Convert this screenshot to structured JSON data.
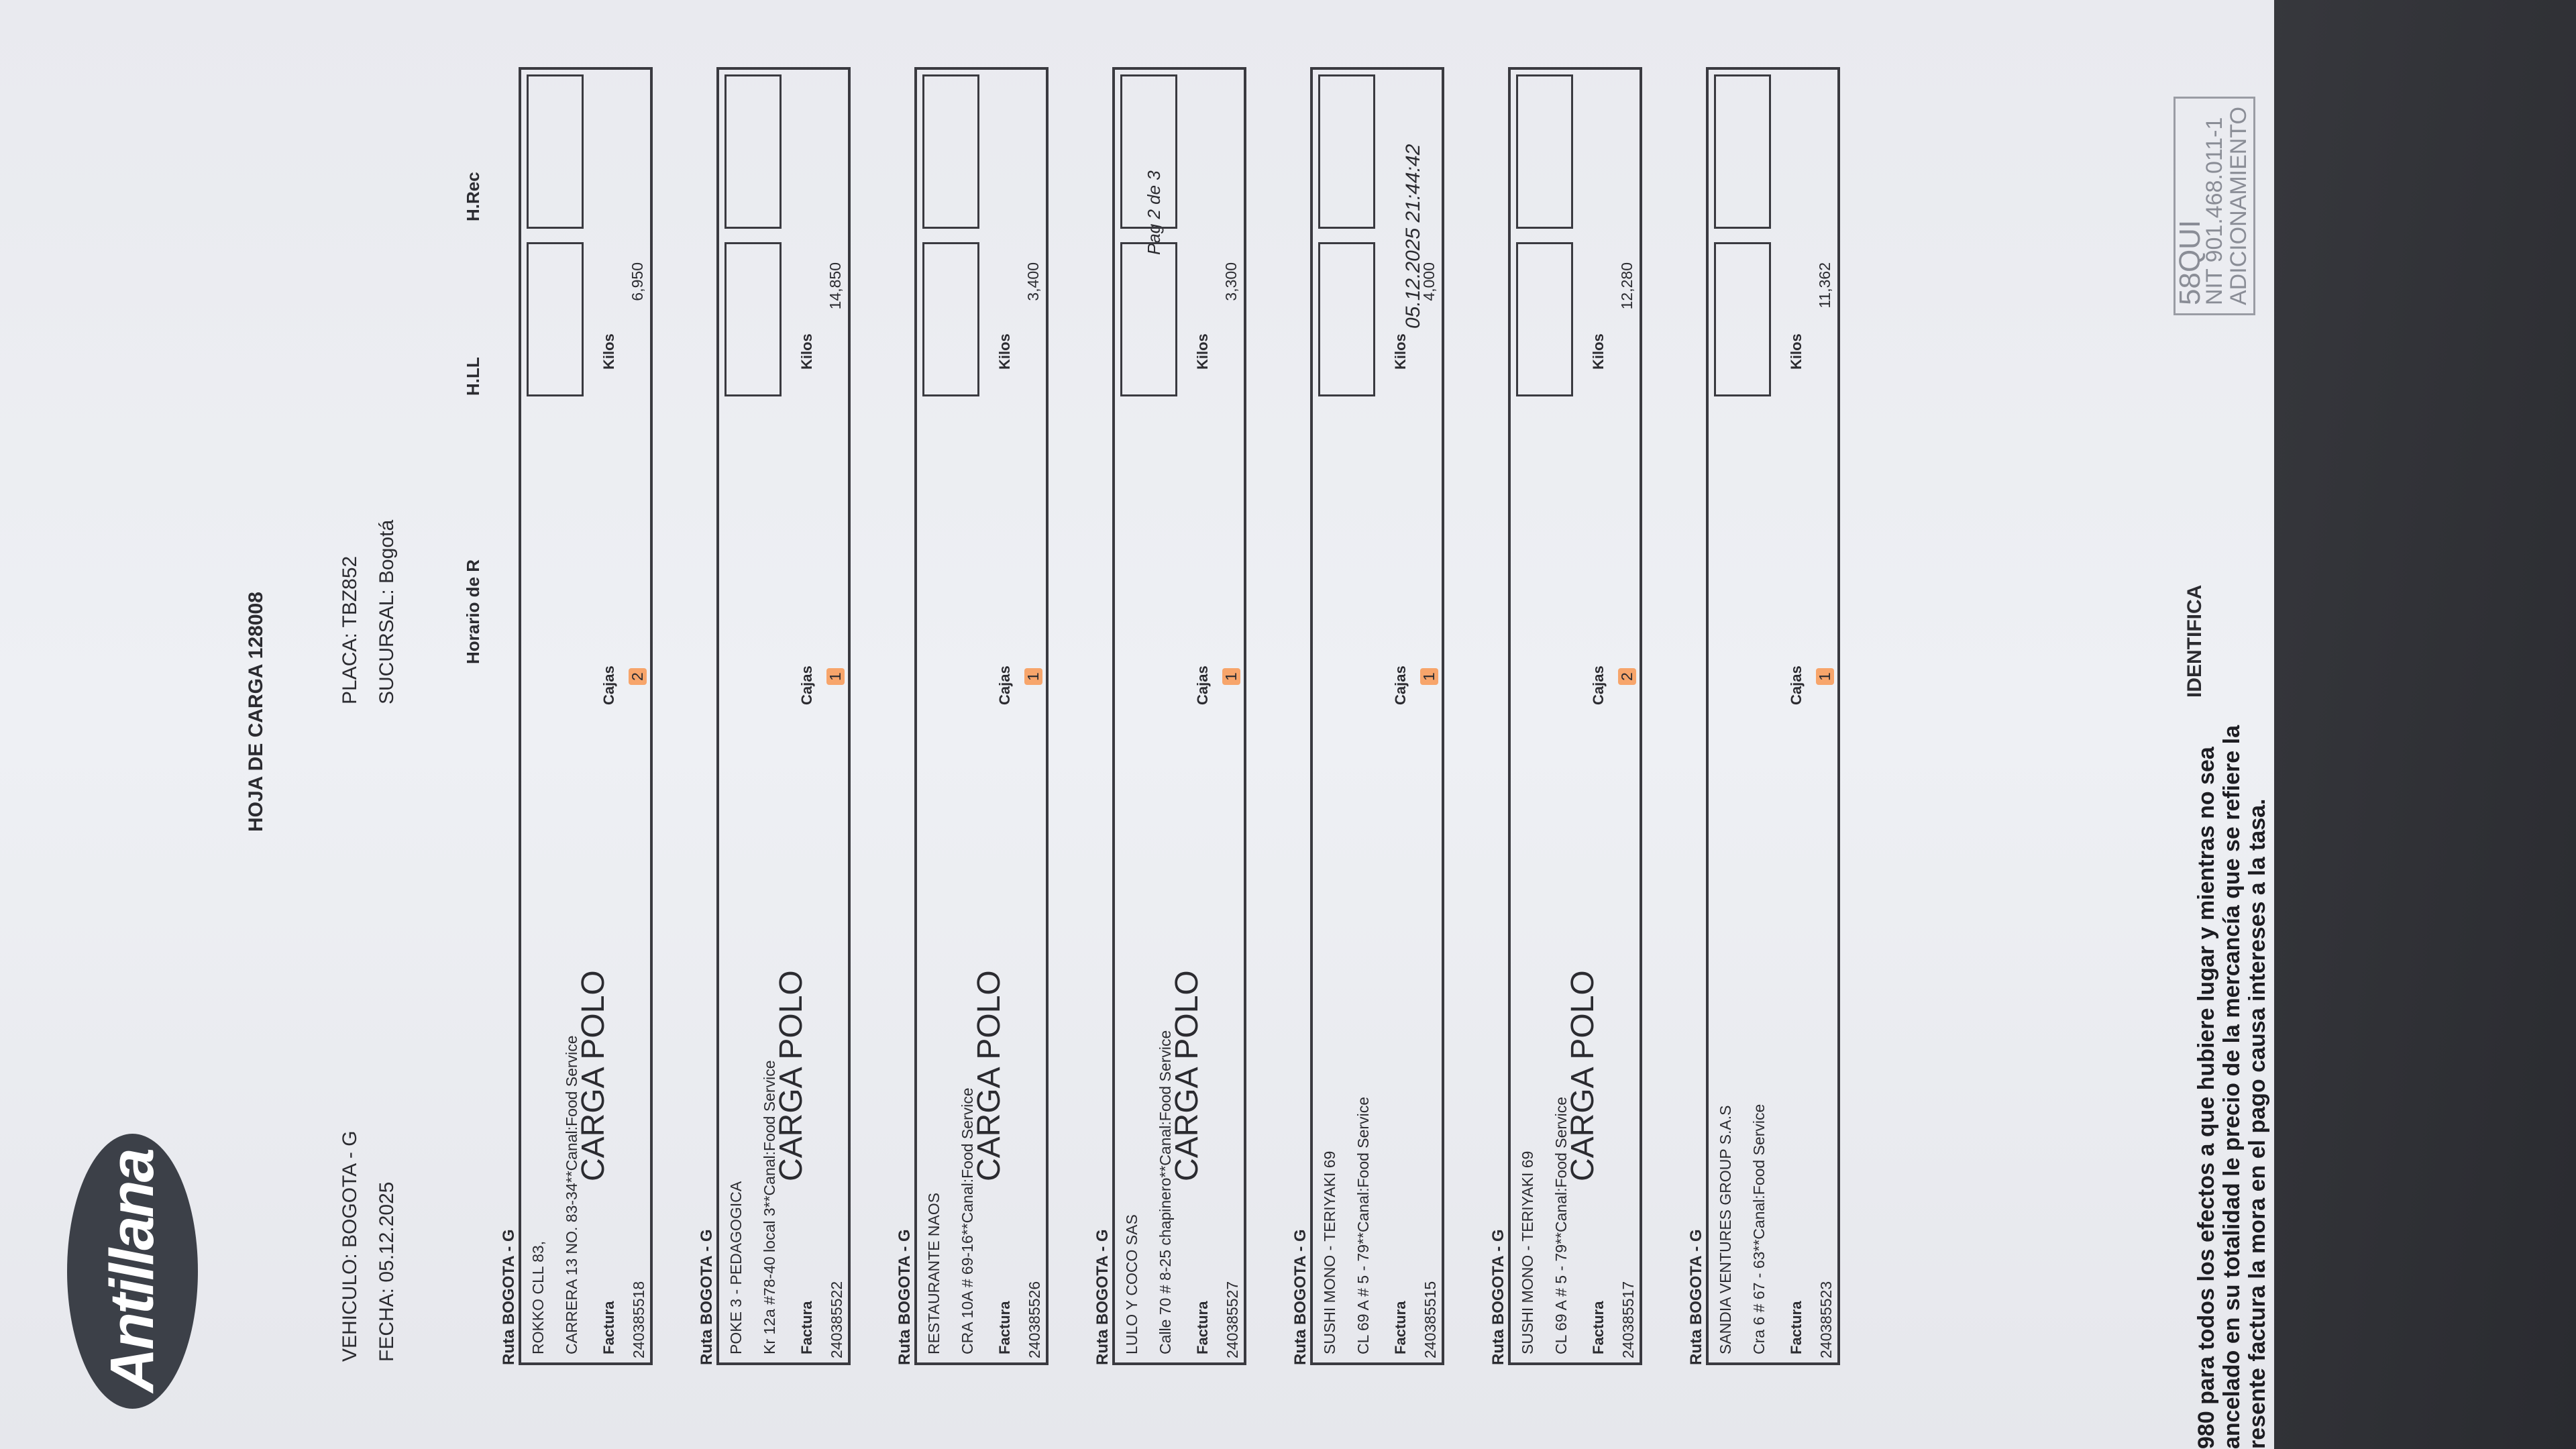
{
  "header": {
    "logo": "Antillana",
    "vehiculo": "VEHICULO: BOGOTA - G",
    "fecha": "FECHA: 05.12.2025",
    "title": "HOJA DE CARGA 128008",
    "placa": "PLACA: TBZ852",
    "sucursal": "SUCURSAL: Bogotá",
    "page": "Pag 2 de 3",
    "datetime": "05.12.2025 21:44:42",
    "col_horario": "Horario de R",
    "col_hll": "H.LL",
    "col_hrec": "H.Rec"
  },
  "labels": {
    "factura": "Factura",
    "cajas": "Cajas",
    "kilos": "Kilos"
  },
  "blocks": [
    {
      "ruta": "Ruta BOGOTA - G",
      "name": "ROKKO CLL 83,",
      "address": "CARRERA 13 NO. 83-34**Canal:Food Service",
      "note": "CARGA POLO",
      "factura": "240385518",
      "cajas": "2",
      "kilos": "6,950"
    },
    {
      "ruta": "Ruta BOGOTA - G",
      "name": "POKE 3 - PEDAGOGICA",
      "address": "Kr 12a #78-40 local 3**Canal:Food Service",
      "note": "CARGA POLO",
      "factura": "240385522",
      "cajas": "1",
      "kilos": "14,850"
    },
    {
      "ruta": "Ruta BOGOTA - G",
      "name": "RESTAURANTE NAOS",
      "address": "CRA 10A # 69-16**Canal:Food Service",
      "note": "CARGA POLO",
      "factura": "240385526",
      "cajas": "1",
      "kilos": "3,400"
    },
    {
      "ruta": "Ruta BOGOTA - G",
      "name": "LULO Y COCO SAS",
      "address": "Calle 70 # 8-25 chapinero**Canal:Food Service",
      "note": "CARGA POLO",
      "factura": "240385527",
      "cajas": "1",
      "kilos": "3,300"
    },
    {
      "ruta": "Ruta BOGOTA - G",
      "name": "SUSHI MONO - TERIYAKI 69",
      "address": "CL 69 A # 5 - 79**Canal:Food Service",
      "note": "",
      "factura": "240385515",
      "cajas": "1",
      "kilos": "4,000"
    },
    {
      "ruta": "Ruta BOGOTA - G",
      "name": "SUSHI MONO - TERIYAKI 69",
      "address": "CL 69 A # 5 - 79**Canal:Food Service",
      "note": "CARGA POLO",
      "factura": "240385517",
      "cajas": "2",
      "kilos": "12,280"
    },
    {
      "ruta": "Ruta BOGOTA - G",
      "name": "SANDIA VENTURES GROUP S.A.S",
      "address": "Cra 6 # 67 - 63**Canal:Food Service",
      "note": "",
      "factura": "240385523",
      "cajas": "1",
      "kilos": "11,362"
    }
  ],
  "footer": {
    "line1": "980 para todos los efectos a que hubiere lugar y mientras no sea",
    "line2": "ancelado en su totalidad le precio de la mercancía que se refiere la",
    "line3": "resente factura la mora en el pago causa intereses a la tasa.",
    "ident": "IDENTIFICA"
  },
  "stamp": {
    "line1": "58QUI",
    "line2": "NIT 901.468.011-1",
    "line3": "ADICIONAMIENTO"
  },
  "colors": {
    "highlight": "#f7a56b",
    "ink": "#2b2b30",
    "paper": "#eceef2"
  }
}
